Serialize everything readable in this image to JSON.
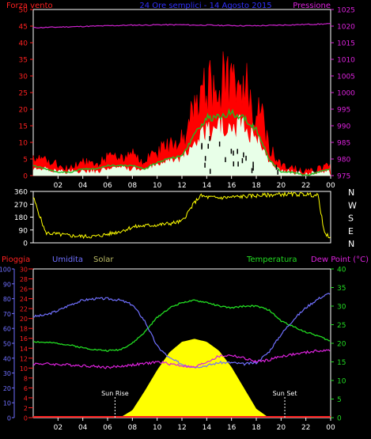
{
  "header": {
    "top_left": "Forza vento",
    "top_center": "24 Ore semplici - 14 Agosto 2015",
    "top_right": "Pressione"
  },
  "mid_header": {
    "left1": "Pioggia",
    "left2": "Umidita",
    "left3": "Solar",
    "right1": "Temperatura",
    "right2": "Dew Point (°C)"
  },
  "x_ticks": [
    "02",
    "04",
    "06",
    "08",
    "10",
    "12",
    "14",
    "16",
    "18",
    "20",
    "22",
    "00"
  ],
  "colors": {
    "wind_gust": "#ff0000",
    "wind_avg": "#22bb22",
    "wind_speed": "#e8ffe8",
    "pressure": "#cc22cc",
    "direction": "#ffff00",
    "humidity": "#7070ff",
    "temperature": "#22dd22",
    "dewpoint": "#dd22dd",
    "solar": "#ffff00",
    "rain": "#ff2020"
  },
  "chart_data": [
    {
      "type": "bar",
      "name": "wind",
      "y_left_label": "Forza vento",
      "y_right_label": "Pressione",
      "y_left_ticks": [
        "0",
        "5",
        "10",
        "15",
        "20",
        "25",
        "30",
        "35",
        "40",
        "45",
        "50"
      ],
      "ylim_left": [
        0,
        50
      ],
      "y_right_ticks": [
        "975",
        "980",
        "985",
        "990",
        "995",
        "1000",
        "1005",
        "1010",
        "1015",
        "1020",
        "1025"
      ],
      "ylim_right": [
        975,
        1025
      ],
      "hours": [
        0,
        1,
        2,
        3,
        4,
        5,
        6,
        7,
        8,
        9,
        10,
        11,
        12,
        13,
        14,
        15,
        16,
        17,
        18,
        19,
        20,
        21,
        22,
        23,
        24
      ],
      "gust": [
        6,
        5,
        3,
        2,
        4,
        3,
        5,
        5,
        6,
        4,
        7,
        8,
        10,
        18,
        25,
        26,
        27,
        25,
        22,
        8,
        3,
        2,
        1,
        2,
        3
      ],
      "avg": [
        3,
        2,
        1,
        1,
        2,
        2,
        3,
        3,
        3,
        2,
        4,
        5,
        6,
        12,
        17,
        18,
        19,
        17,
        14,
        5,
        1,
        1,
        0,
        1,
        2
      ],
      "speed": [
        2,
        2,
        1,
        1,
        1,
        1,
        2,
        2,
        2,
        2,
        3,
        4,
        5,
        9,
        13,
        14,
        15,
        14,
        11,
        4,
        1,
        1,
        0,
        1,
        1
      ],
      "pressure": [
        1019.5,
        1019.6,
        1019.7,
        1019.8,
        1019.9,
        1020.0,
        1020.1,
        1020.2,
        1020.3,
        1020.3,
        1020.4,
        1020.4,
        1020.4,
        1020.3,
        1020.3,
        1020.2,
        1020.2,
        1020.1,
        1020.1,
        1020.2,
        1020.3,
        1020.4,
        1020.5,
        1020.6,
        1020.7
      ]
    },
    {
      "type": "line",
      "name": "direction",
      "y_ticks": [
        "360",
        "270",
        "180",
        "90",
        "0"
      ],
      "ylim": [
        0,
        360
      ],
      "cardinal": [
        "N",
        "W",
        "S",
        "E",
        "N"
      ],
      "hours": [
        0,
        1,
        2,
        3,
        4,
        5,
        6,
        7,
        8,
        9,
        10,
        11,
        12,
        13,
        13.5,
        14,
        15,
        16,
        17,
        18,
        19,
        20,
        21,
        22,
        23,
        23.5,
        24
      ],
      "values": [
        320,
        70,
        60,
        50,
        45,
        45,
        60,
        80,
        110,
        120,
        125,
        135,
        150,
        280,
        330,
        320,
        315,
        320,
        325,
        330,
        335,
        340,
        340,
        340,
        330,
        60,
        40
      ]
    },
    {
      "type": "line",
      "name": "temperature_humidity",
      "y_left_ticks_humidity": [
        "0",
        "10",
        "20",
        "30",
        "40",
        "50",
        "60",
        "70",
        "80",
        "90",
        "100"
      ],
      "y_left_ticks_rain": [
        "0",
        "2",
        "4",
        "6",
        "8",
        "10",
        "12",
        "14",
        "16",
        "18",
        "20",
        "22",
        "24",
        "26",
        "28",
        "30"
      ],
      "y_right_ticks": [
        "0",
        "5",
        "10",
        "15",
        "20",
        "25",
        "30",
        "35",
        "40"
      ],
      "ylim_humidity": [
        0,
        100
      ],
      "ylim_temp": [
        0,
        40
      ],
      "hours": [
        0,
        1,
        2,
        3,
        4,
        5,
        6,
        7,
        8,
        9,
        10,
        11,
        12,
        13,
        14,
        15,
        16,
        17,
        18,
        19,
        20,
        21,
        22,
        23,
        24
      ],
      "humidity": [
        68,
        69,
        72,
        76,
        79,
        80,
        80,
        79,
        76,
        65,
        48,
        40,
        36,
        34,
        35,
        37,
        37,
        36,
        37,
        44,
        56,
        66,
        74,
        80,
        84
      ],
      "temperature": [
        20.5,
        20.2,
        20.0,
        19.5,
        18.8,
        18.3,
        18.0,
        18.3,
        20,
        23,
        27,
        29.5,
        31,
        31.5,
        31,
        30,
        29.5,
        30,
        30,
        29,
        26,
        24.5,
        23,
        22,
        20.5
      ],
      "dewpoint": [
        14.5,
        14.5,
        14.3,
        14.2,
        14.0,
        13.8,
        13.5,
        13.8,
        14.2,
        14.5,
        15,
        14.5,
        14,
        13.5,
        15,
        16.5,
        16.8,
        16,
        15,
        15.5,
        16.5,
        17,
        17.5,
        18,
        18
      ],
      "solar": [
        0,
        0,
        0,
        0,
        0,
        0,
        0,
        0,
        5,
        18,
        32,
        44,
        51,
        53,
        51,
        45,
        34,
        20,
        6,
        0,
        0,
        0,
        0,
        0,
        0
      ],
      "rain": [
        0,
        0,
        0,
        0,
        0,
        0,
        0,
        0,
        0,
        0,
        0,
        0,
        0,
        0,
        0,
        0,
        0,
        0,
        0,
        0,
        0,
        0,
        0,
        0,
        0
      ],
      "annotations": [
        "Sun Rise",
        "Sun Set"
      ],
      "sunrise_hour": 6.6,
      "sunset_hour": 20.3
    }
  ]
}
